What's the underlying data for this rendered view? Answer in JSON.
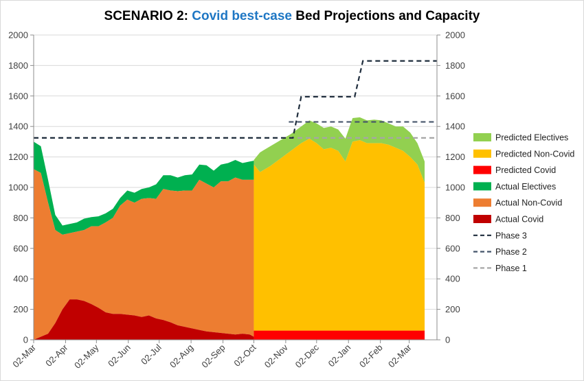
{
  "chart_data": {
    "type": "area",
    "title_parts": [
      {
        "text": "SCENARIO 2: ",
        "color": "#000000"
      },
      {
        "text": "Covid best-case",
        "color": "#1f77c4"
      },
      {
        "text": " Bed Projections and Capacity",
        "color": "#000000"
      }
    ],
    "x_tick_labels": [
      "02-Mar",
      "02-Apr",
      "02-May",
      "02-Jun",
      "02-Jul",
      "02-Aug",
      "02-Sep",
      "02-Oct",
      "02-Nov",
      "02-Dec",
      "02-Jan",
      "02-Feb",
      "02-Mar"
    ],
    "x_tick_days": [
      0,
      31,
      61,
      92,
      122,
      153,
      184,
      214,
      245,
      275,
      306,
      337,
      365
    ],
    "xlim_days": [
      0,
      392
    ],
    "ylim": [
      0,
      2000
    ],
    "y_ticks": [
      0,
      200,
      400,
      600,
      800,
      1000,
      1200,
      1400,
      1600,
      1800,
      2000
    ],
    "grid": true,
    "legend_position": "right",
    "colors": {
      "predicted_electives": "#92d050",
      "predicted_noncovid": "#ffc000",
      "predicted_covid": "#ff0000",
      "actual_electives": "#00b050",
      "actual_noncovid": "#ed7d31",
      "actual_covid": "#c00000",
      "phase3": "#1f2d3d",
      "phase2": "#44546a",
      "phase1": "#a6a6a6"
    },
    "actual": {
      "x_days": [
        0,
        7,
        14,
        21,
        28,
        35,
        42,
        49,
        56,
        63,
        70,
        77,
        84,
        91,
        98,
        105,
        112,
        119,
        126,
        133,
        140,
        147,
        154,
        161,
        168,
        175,
        182,
        189,
        196,
        203,
        210,
        214
      ],
      "covid": [
        0,
        20,
        40,
        110,
        200,
        265,
        265,
        255,
        235,
        210,
        180,
        170,
        170,
        165,
        160,
        150,
        160,
        140,
        130,
        115,
        95,
        85,
        75,
        65,
        55,
        50,
        45,
        40,
        35,
        40,
        35,
        20
      ],
      "total_noncovid_top": [
        1120,
        1095,
        900,
        720,
        690,
        700,
        710,
        720,
        745,
        745,
        770,
        800,
        880,
        920,
        900,
        925,
        930,
        925,
        990,
        980,
        975,
        980,
        980,
        1050,
        1025,
        1000,
        1040,
        1040,
        1065,
        1050,
        1050,
        1050
      ],
      "total_top": [
        1300,
        1270,
        1050,
        820,
        750,
        760,
        770,
        795,
        805,
        810,
        830,
        860,
        930,
        980,
        965,
        990,
        1000,
        1020,
        1080,
        1080,
        1065,
        1080,
        1085,
        1150,
        1145,
        1110,
        1150,
        1160,
        1180,
        1160,
        1170,
        1175
      ]
    },
    "predicted": {
      "x_days": [
        214,
        220,
        230,
        240,
        250,
        260,
        268,
        275,
        282,
        289,
        296,
        303,
        310,
        317,
        324,
        331,
        338,
        345,
        352,
        359,
        366,
        373,
        380
      ],
      "covid": [
        60,
        60,
        60,
        60,
        60,
        60,
        60,
        60,
        60,
        60,
        60,
        60,
        60,
        60,
        60,
        60,
        60,
        60,
        60,
        60,
        60,
        60,
        60
      ],
      "total_noncovid_top": [
        1150,
        1100,
        1140,
        1190,
        1240,
        1290,
        1320,
        1290,
        1250,
        1260,
        1240,
        1170,
        1300,
        1310,
        1290,
        1290,
        1290,
        1280,
        1260,
        1240,
        1200,
        1150,
        1030
      ],
      "total_top": [
        1180,
        1230,
        1270,
        1310,
        1350,
        1400,
        1440,
        1420,
        1390,
        1400,
        1380,
        1320,
        1455,
        1460,
        1440,
        1445,
        1440,
        1420,
        1400,
        1400,
        1360,
        1290,
        1170
      ]
    },
    "phase_lines": {
      "phase1": {
        "x_days": [
          0,
          392
        ],
        "y": [
          1325,
          1325
        ]
      },
      "phase2": {
        "x_days": [
          248,
          392
        ],
        "y": [
          1430,
          1430
        ]
      },
      "phase3": {
        "x_days": [
          0,
          252,
          260,
          312,
          320,
          392
        ],
        "y": [
          1325,
          1325,
          1595,
          1595,
          1830,
          1830
        ]
      }
    },
    "legend": [
      {
        "label": "Predicted Electives",
        "kind": "area",
        "color_key": "predicted_electives"
      },
      {
        "label": "Predicted Non-Covid",
        "kind": "area",
        "color_key": "predicted_noncovid"
      },
      {
        "label": "Predicted Covid",
        "kind": "area",
        "color_key": "predicted_covid"
      },
      {
        "label": "Actual Electives",
        "kind": "area",
        "color_key": "actual_electives"
      },
      {
        "label": "Actual Non-Covid",
        "kind": "area",
        "color_key": "actual_noncovid"
      },
      {
        "label": "Actual Covid",
        "kind": "area",
        "color_key": "actual_covid"
      },
      {
        "label": "Phase 3",
        "kind": "line",
        "color_key": "phase3"
      },
      {
        "label": "Phase 2",
        "kind": "line",
        "color_key": "phase2"
      },
      {
        "label": "Phase 1",
        "kind": "line",
        "color_key": "phase1"
      }
    ]
  }
}
